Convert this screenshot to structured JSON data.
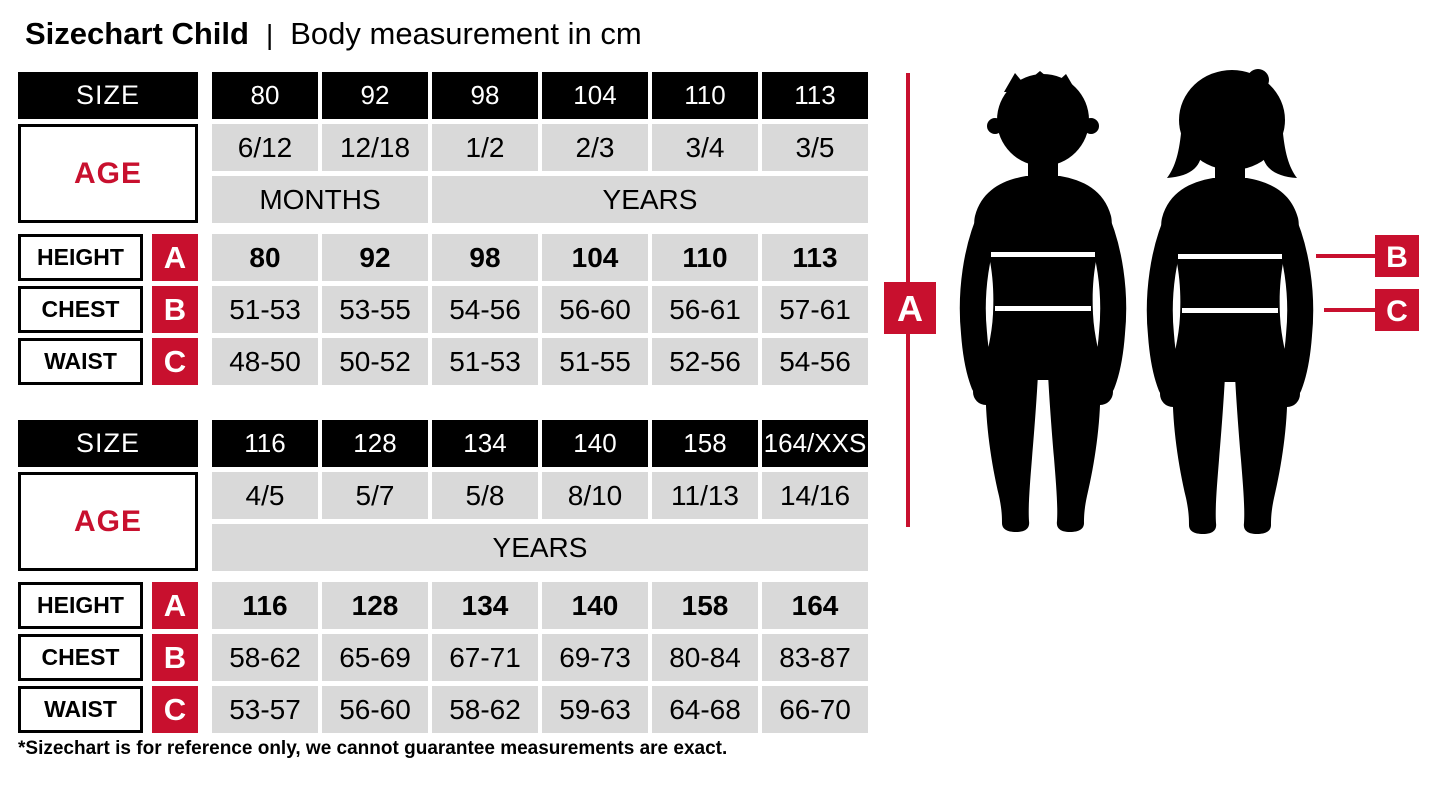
{
  "page": {
    "title_bold": "Sizechart Child",
    "separator": "|",
    "title_rest": "Body measurement in cm",
    "footnote": "*Sizechart is for reference only, we cannot guarantee measurements are exact."
  },
  "colors": {
    "accent_red": "#C8102E",
    "header_black": "#000000",
    "cell_gray": "#D9D9D9",
    "background": "#FFFFFF"
  },
  "labels": {
    "size": "SIZE",
    "age": "AGE",
    "height": "HEIGHT",
    "chest": "CHEST",
    "waist": "WAIST",
    "marker_a": "A",
    "marker_b": "B",
    "marker_c": "C"
  },
  "table1": {
    "sizes": [
      "80",
      "92",
      "98",
      "104",
      "110",
      "113"
    ],
    "ages": [
      "6/12",
      "12/18",
      "1/2",
      "2/3",
      "3/4",
      "3/5"
    ],
    "age_units": [
      {
        "label": "MONTHS",
        "span": 2
      },
      {
        "label": "YEARS",
        "span": 4
      }
    ],
    "height": [
      "80",
      "92",
      "98",
      "104",
      "110",
      "113"
    ],
    "chest": [
      "51-53",
      "53-55",
      "54-56",
      "56-60",
      "56-61",
      "57-61"
    ],
    "waist": [
      "48-50",
      "50-52",
      "51-53",
      "51-55",
      "52-56",
      "54-56"
    ]
  },
  "table2": {
    "sizes": [
      "116",
      "128",
      "134",
      "140",
      "158",
      "164/XXS"
    ],
    "ages": [
      "4/5",
      "5/7",
      "5/8",
      "8/10",
      "11/13",
      "14/16"
    ],
    "age_units": [
      {
        "label": "YEARS",
        "span": 6
      }
    ],
    "height": [
      "116",
      "128",
      "134",
      "140",
      "158",
      "164"
    ],
    "chest": [
      "58-62",
      "65-69",
      "67-71",
      "69-73",
      "80-84",
      "83-87"
    ],
    "waist": [
      "53-57",
      "56-60",
      "58-62",
      "59-63",
      "64-68",
      "66-70"
    ]
  },
  "figure": {
    "marker_a": "A",
    "marker_b": "B",
    "marker_c": "C"
  }
}
